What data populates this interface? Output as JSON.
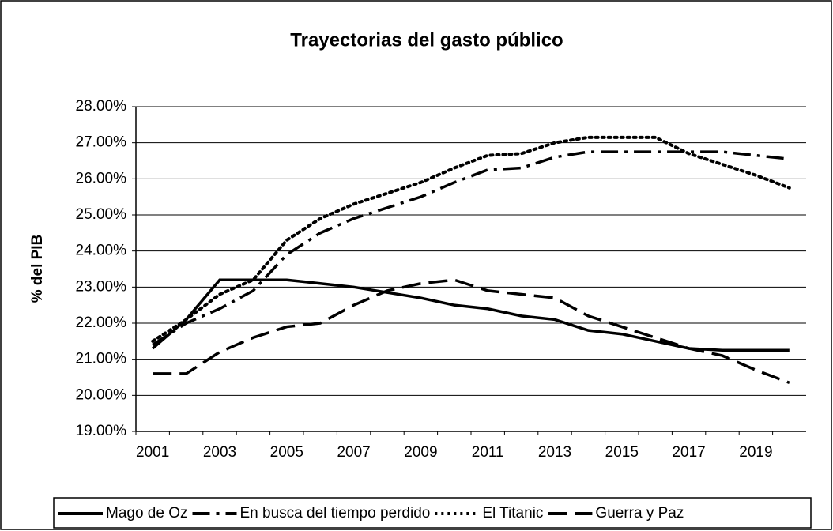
{
  "chart_data": {
    "type": "line",
    "title": "Trayectorias del gasto público",
    "y_label": "% del PIB",
    "categories": [
      "2001",
      null,
      "2003",
      null,
      "2005",
      null,
      "2007",
      null,
      "2009",
      null,
      "2011",
      null,
      "2013",
      null,
      "2015",
      null,
      "2017",
      null,
      "2019",
      null
    ],
    "ylim": [
      19,
      28
    ],
    "yticks": [
      {
        "value": 19,
        "label": "19.00%"
      },
      {
        "value": 20,
        "label": "20.00%"
      },
      {
        "value": 21,
        "label": "21.00%"
      },
      {
        "value": 22,
        "label": "22.00%"
      },
      {
        "value": 23,
        "label": "23.00%"
      },
      {
        "value": 24,
        "label": "24.00%"
      },
      {
        "value": 25,
        "label": "25.00%"
      },
      {
        "value": 26,
        "label": "26.00%"
      },
      {
        "value": 27,
        "label": "27.00%"
      },
      {
        "value": 28,
        "label": "28.00%"
      }
    ],
    "grid": true,
    "legend": "bottom",
    "series": [
      {
        "name": "Mago de Oz",
        "color": "#000000",
        "style": "solid",
        "values": [
          21.3,
          22.1,
          23.2,
          23.2,
          23.2,
          23.1,
          23.0,
          22.85,
          22.7,
          22.5,
          22.4,
          22.2,
          22.1,
          21.8,
          21.7,
          21.5,
          21.3,
          21.25,
          21.25,
          21.25
        ]
      },
      {
        "name": "En busca del tiempo perdido",
        "color": "#000000",
        "style": "dashdot",
        "values": [
          21.4,
          22.0,
          22.4,
          22.9,
          23.9,
          24.5,
          24.9,
          25.2,
          25.5,
          25.9,
          26.25,
          26.3,
          26.6,
          26.75,
          26.75,
          26.75,
          26.75,
          26.75,
          26.65,
          26.55
        ]
      },
      {
        "name": "El Titanic",
        "color": "#000000",
        "style": "dotted",
        "values": [
          21.5,
          22.1,
          22.8,
          23.2,
          24.3,
          24.9,
          25.3,
          25.6,
          25.9,
          26.3,
          26.65,
          26.7,
          27.0,
          27.15,
          27.15,
          27.15,
          26.7,
          26.4,
          26.1,
          25.75
        ]
      },
      {
        "name": "Guerra y Paz",
        "color": "#000000",
        "style": "dashed",
        "values": [
          20.6,
          20.6,
          21.2,
          21.6,
          21.9,
          22.0,
          22.5,
          22.9,
          23.1,
          23.2,
          22.9,
          22.8,
          22.7,
          22.2,
          21.9,
          21.6,
          21.3,
          21.1,
          20.7,
          20.35
        ]
      }
    ]
  }
}
